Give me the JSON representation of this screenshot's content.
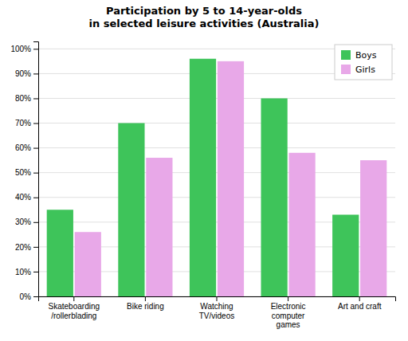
{
  "chart_data": {
    "type": "bar",
    "title": "Participation by 5 to 14-year-olds\nin selected leisure activities (Australia)",
    "categories": [
      "Skateboarding\n/rollerblading",
      "Bike riding",
      "Watching\nTV/videos",
      "Electronic\ncomputer\ngames",
      "Art and craft"
    ],
    "series": [
      {
        "name": "Boys",
        "color": "#3ec45a",
        "values": [
          35,
          70,
          96,
          80,
          33
        ]
      },
      {
        "name": "Girls",
        "color": "#e8a8e8",
        "values": [
          26,
          56,
          95,
          58,
          55
        ]
      }
    ],
    "ylim": [
      0,
      103
    ],
    "yticks": [
      {
        "value": 0,
        "label": "0%"
      },
      {
        "value": 10,
        "label": "10%"
      },
      {
        "value": 20,
        "label": "20%"
      },
      {
        "value": 30,
        "label": "30%"
      },
      {
        "value": 40,
        "label": "40%"
      },
      {
        "value": 50,
        "label": "50%"
      },
      {
        "value": 60,
        "label": "60%"
      },
      {
        "value": 70,
        "label": "70%"
      },
      {
        "value": 80,
        "label": "80%"
      },
      {
        "value": 90,
        "label": "90%"
      },
      {
        "value": 100,
        "label": "100%"
      }
    ],
    "grid": true,
    "legend": "upper right"
  }
}
